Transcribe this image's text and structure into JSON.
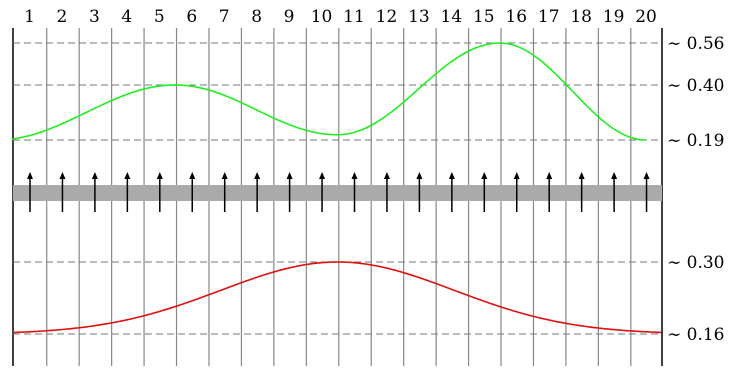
{
  "columns": [
    "1",
    "2",
    "3",
    "4",
    "5",
    "6",
    "7",
    "8",
    "9",
    "10",
    "11",
    "12",
    "13",
    "14",
    "15",
    "16",
    "17",
    "18",
    "19",
    "20"
  ],
  "top_curve": {
    "color": "#22ee22",
    "levels": [
      {
        "label": "∼ 0.56",
        "value": 0.56
      },
      {
        "label": "∼ 0.40",
        "value": 0.4
      },
      {
        "label": "∼ 0.19",
        "value": 0.19
      }
    ],
    "peaks": [
      {
        "position": 5.0,
        "value": 0.4
      },
      {
        "position": 10.0,
        "value": 0.21
      },
      {
        "position": 15.0,
        "value": 0.56
      }
    ],
    "ends": 0.19
  },
  "bottom_curve": {
    "color": "#dd1111",
    "levels": [
      {
        "label": "∼ 0.30",
        "value": 0.3
      },
      {
        "label": "∼ 0.16",
        "value": 0.16
      }
    ],
    "peak": {
      "position": 10.0,
      "value": 0.3
    },
    "base": 0.16
  },
  "arrow_count": 20,
  "band_color": "#aaaaaa",
  "gridline_color": "#888888"
}
